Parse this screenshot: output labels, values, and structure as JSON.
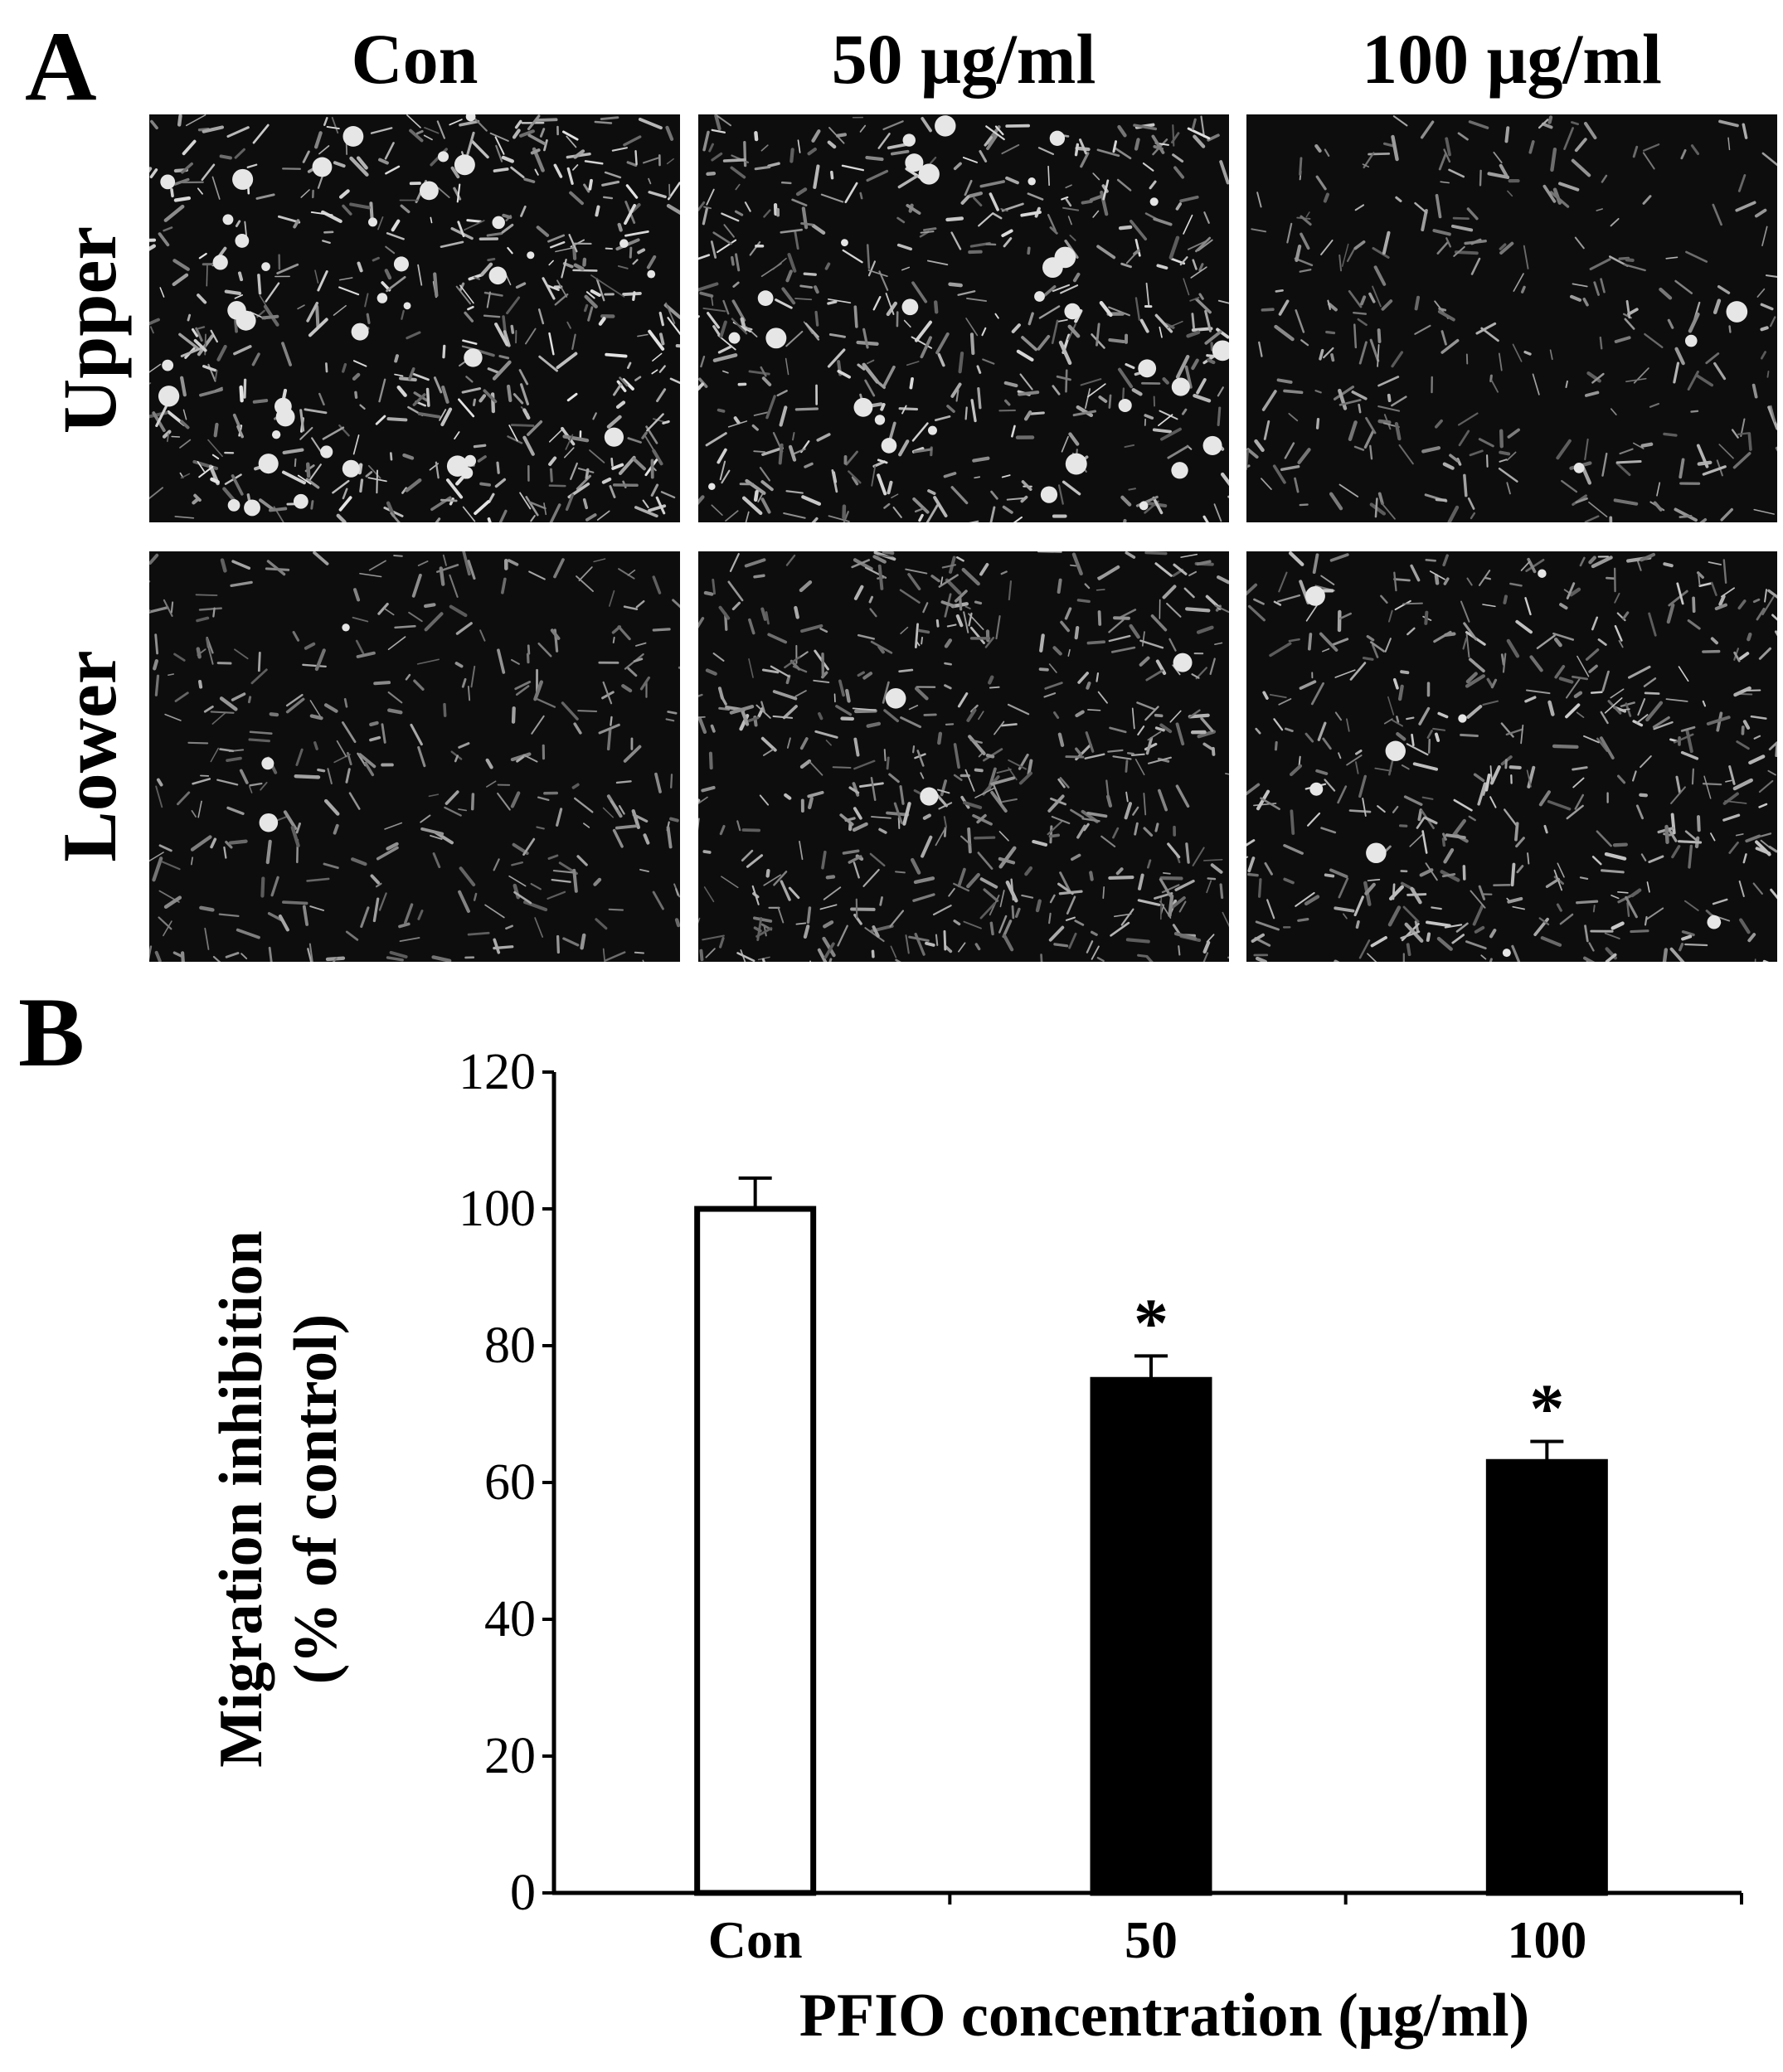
{
  "panel_a": {
    "letter": "A",
    "column_labels": [
      "Con",
      "50 μg/ml",
      "100 μg/ml"
    ],
    "row_labels": [
      "Upper",
      "Lower"
    ]
  },
  "panel_b": {
    "letter": "B"
  },
  "chart_data": {
    "type": "bar",
    "categories": [
      "Con",
      "50",
      "100"
    ],
    "values": [
      100,
      75,
      63
    ],
    "errors": [
      4.5,
      3.5,
      3.0
    ],
    "significance": [
      "",
      "*",
      "*"
    ],
    "bar_fills": [
      "#ffffff",
      "#000000",
      "#000000"
    ],
    "xlabel": "PFIO concentration (μg/ml)",
    "ylabel": [
      "Migration inhibition",
      "(% of control)"
    ],
    "ylim": [
      0,
      120
    ],
    "yticks": [
      0,
      20,
      40,
      60,
      80,
      100,
      120
    ],
    "grid": false,
    "legend": "none"
  }
}
